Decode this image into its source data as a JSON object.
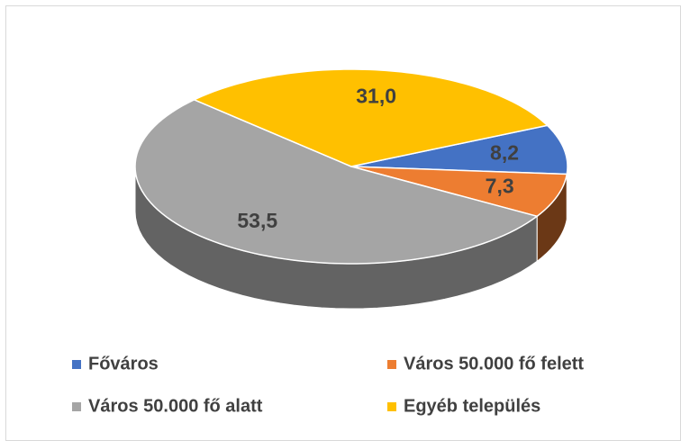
{
  "chart_data": {
    "type": "pie3d",
    "categories": [
      "Főváros",
      "Város 50.000 fő felett",
      "Város 50.000 fő alatt",
      "Egyéb település"
    ],
    "values": [
      8.2,
      7.3,
      53.5,
      31.0
    ],
    "value_labels": [
      "8,2",
      "7,3",
      "53,5",
      "31,0"
    ],
    "colors": [
      "#4472c4",
      "#ed7d31",
      "#a5a5a5",
      "#ffc000"
    ],
    "legend": "bottom"
  }
}
